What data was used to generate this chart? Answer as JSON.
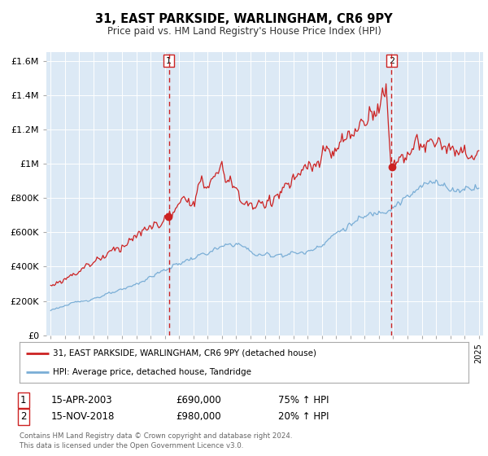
{
  "title": "31, EAST PARKSIDE, WARLINGHAM, CR6 9PY",
  "subtitle": "Price paid vs. HM Land Registry's House Price Index (HPI)",
  "legend_line1": "31, EAST PARKSIDE, WARLINGHAM, CR6 9PY (detached house)",
  "legend_line2": "HPI: Average price, detached house, Tandridge",
  "transaction1_date": "15-APR-2003",
  "transaction1_price": "£690,000",
  "transaction1_hpi": "75% ↑ HPI",
  "transaction1_year": 2003.29,
  "transaction1_value": 690000,
  "transaction2_date": "15-NOV-2018",
  "transaction2_price": "£980,000",
  "transaction2_hpi": "20% ↑ HPI",
  "transaction2_year": 2018.88,
  "transaction2_value": 980000,
  "red_line_color": "#cc2222",
  "blue_line_color": "#7aaed6",
  "background_color": "#dce9f5",
  "ylim": [
    0,
    1650000
  ],
  "yticks": [
    0,
    200000,
    400000,
    600000,
    800000,
    1000000,
    1200000,
    1400000,
    1600000
  ],
  "ytick_labels": [
    "£0",
    "£200K",
    "£400K",
    "£600K",
    "£800K",
    "£1M",
    "£1.2M",
    "£1.4M",
    "£1.6M"
  ],
  "xmin": 1994.7,
  "xmax": 2025.3,
  "footer": "Contains HM Land Registry data © Crown copyright and database right 2024.\nThis data is licensed under the Open Government Licence v3.0.",
  "vline_color": "#cc2222",
  "t2_solid_color": "#cc2222"
}
